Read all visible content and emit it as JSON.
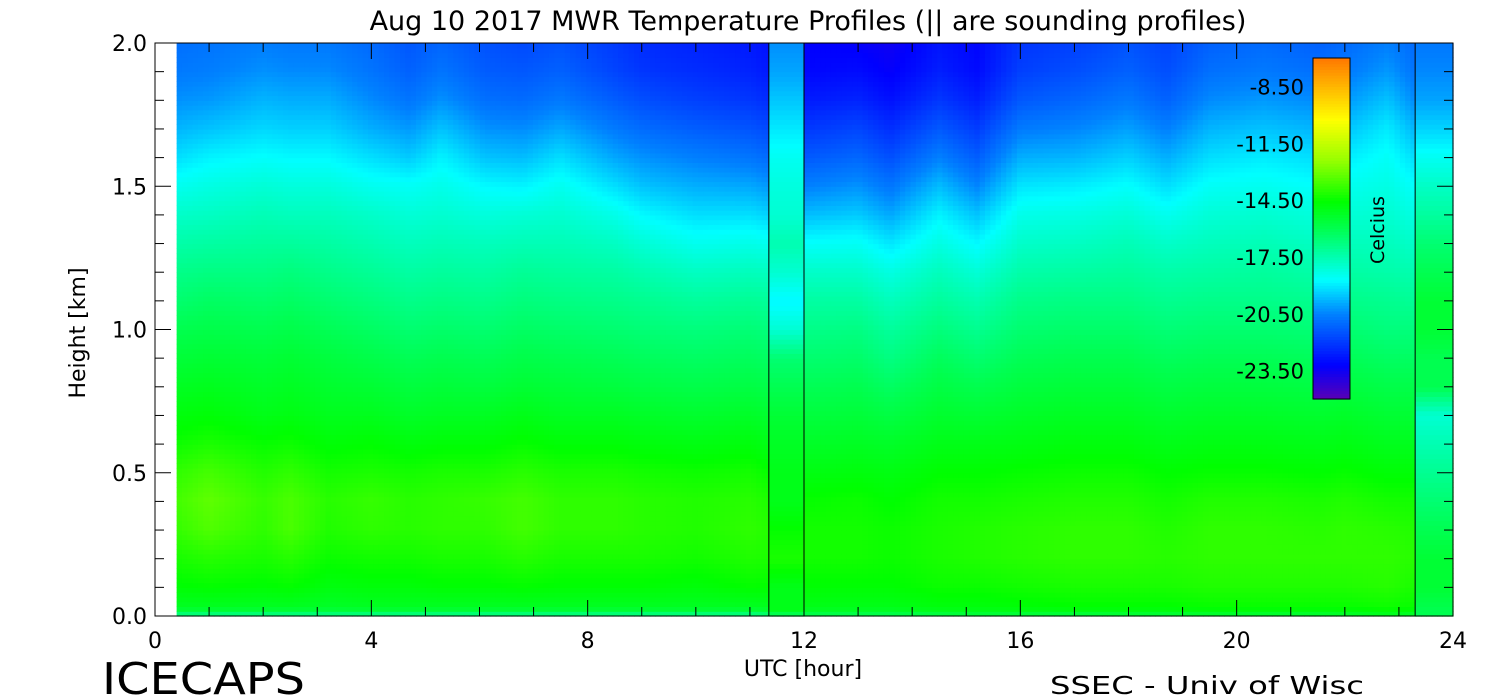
{
  "chart_data": {
    "type": "heatmap",
    "title": "Aug 10 2017 MWR Temperature Profiles (|| are sounding profiles)",
    "xlabel": "UTC [hour]",
    "ylabel": "Height [km]",
    "xlim": [
      0,
      24
    ],
    "ylim": [
      0.0,
      2.0
    ],
    "xticks": [
      "0",
      "4",
      "8",
      "12",
      "16",
      "20",
      "24"
    ],
    "yticks": [
      "0.0",
      "0.5",
      "1.0",
      "1.5",
      "2.0"
    ],
    "colorbar": {
      "label": "Celcius",
      "range": [
        -25.0,
        -7.0
      ],
      "ticks": [
        "-8.50",
        "-11.50",
        "-14.50",
        "-17.50",
        "-20.50",
        "-23.50"
      ],
      "tick_values": [
        -8.5,
        -11.5,
        -14.5,
        -17.5,
        -20.5,
        -23.5
      ]
    },
    "data_start_hour": 0.4,
    "data_end_hour": 24.0,
    "heights_km": [
      0.0,
      0.02,
      0.1,
      0.2,
      0.3,
      0.4,
      0.5,
      0.6,
      0.7,
      0.8,
      0.9,
      1.0,
      1.1,
      1.2,
      1.3,
      1.4,
      1.5,
      1.6,
      1.7,
      1.8,
      1.9,
      2.0
    ],
    "sounding_profiles": [
      {
        "start_hour": 11.35,
        "end_hour": 12.0,
        "temperature_c": [
          -16.5,
          -15.0,
          -15.0,
          -14.2,
          -14.5,
          -15.0,
          -15.0,
          -15.2,
          -15.5,
          -16.0,
          -16.5,
          -18.0,
          -18.8,
          -18.0,
          -17.5,
          -18.0,
          -18.2,
          -18.5,
          -19.0,
          -19.5,
          -20.0,
          -20.3
        ]
      },
      {
        "start_hour": 23.3,
        "end_hour": 24.0,
        "temperature_c": [
          -16.0,
          -16.0,
          -15.5,
          -15.5,
          -16.0,
          -16.5,
          -17.0,
          -17.5,
          -18.0,
          -16.0,
          -16.0,
          -15.5,
          -15.5,
          -16.0,
          -16.5,
          -17.2,
          -17.8,
          -18.5,
          -19.3,
          -20.0,
          -20.4,
          -20.7
        ]
      }
    ],
    "mwr_profiles": [
      {
        "hour": 0.4,
        "temperature_c": [
          -16.5,
          -15.2,
          -14.6,
          -14.2,
          -13.8,
          -13.6,
          -13.9,
          -14.4,
          -14.8,
          -15.2,
          -15.6,
          -16.0,
          -16.5,
          -16.9,
          -17.4,
          -17.9,
          -18.5,
          -19.2,
          -19.8,
          -20.3,
          -20.7,
          -20.9
        ]
      },
      {
        "hour": 1.0,
        "temperature_c": [
          -16.5,
          -15.2,
          -14.5,
          -14.0,
          -13.4,
          -13.2,
          -13.6,
          -14.2,
          -14.7,
          -15.1,
          -15.5,
          -15.9,
          -16.3,
          -16.8,
          -17.3,
          -17.8,
          -18.3,
          -18.9,
          -19.6,
          -20.2,
          -20.6,
          -20.8
        ]
      },
      {
        "hour": 2.0,
        "temperature_c": [
          -16.5,
          -15.2,
          -14.6,
          -14.2,
          -13.9,
          -13.8,
          -14.1,
          -14.5,
          -15.0,
          -15.3,
          -15.6,
          -16.0,
          -16.4,
          -16.8,
          -17.2,
          -17.6,
          -18.1,
          -18.7,
          -19.3,
          -19.8,
          -20.3,
          -20.6
        ]
      },
      {
        "hour": 2.5,
        "temperature_c": [
          -16.5,
          -15.2,
          -14.5,
          -14.0,
          -13.5,
          -13.5,
          -13.9,
          -14.4,
          -14.9,
          -15.2,
          -15.5,
          -15.9,
          -16.3,
          -16.7,
          -17.2,
          -17.7,
          -18.2,
          -18.8,
          -19.4,
          -19.9,
          -20.4,
          -20.7
        ]
      },
      {
        "hour": 3.2,
        "temperature_c": [
          -16.5,
          -15.3,
          -14.8,
          -14.4,
          -14.1,
          -14.0,
          -14.3,
          -14.7,
          -15.1,
          -15.4,
          -15.7,
          -16.1,
          -16.5,
          -16.9,
          -17.3,
          -17.7,
          -18.2,
          -18.8,
          -19.4,
          -19.9,
          -20.4,
          -20.7
        ]
      },
      {
        "hour": 4.0,
        "temperature_c": [
          -16.5,
          -15.2,
          -14.7,
          -14.3,
          -13.9,
          -13.8,
          -14.2,
          -14.6,
          -15.1,
          -15.5,
          -15.9,
          -16.3,
          -16.7,
          -17.1,
          -17.5,
          -17.9,
          -18.5,
          -19.2,
          -19.9,
          -20.4,
          -20.8,
          -21.0
        ]
      },
      {
        "hour": 4.7,
        "temperature_c": [
          -16.5,
          -15.2,
          -14.7,
          -14.3,
          -14.0,
          -14.0,
          -14.3,
          -14.8,
          -15.3,
          -15.7,
          -16.1,
          -16.5,
          -16.9,
          -17.3,
          -17.7,
          -18.1,
          -18.6,
          -19.5,
          -20.2,
          -20.8,
          -21.2,
          -21.4
        ]
      },
      {
        "hour": 5.3,
        "temperature_c": [
          -16.5,
          -15.2,
          -14.6,
          -14.2,
          -13.9,
          -13.9,
          -14.2,
          -14.7,
          -15.2,
          -15.6,
          -16.0,
          -16.4,
          -16.8,
          -17.2,
          -17.6,
          -18.0,
          -18.4,
          -18.9,
          -19.6,
          -20.3,
          -20.8,
          -21.1
        ]
      },
      {
        "hour": 6.1,
        "temperature_c": [
          -16.5,
          -15.2,
          -14.6,
          -14.2,
          -13.9,
          -13.8,
          -14.2,
          -14.7,
          -15.2,
          -15.7,
          -16.1,
          -16.5,
          -16.9,
          -17.3,
          -17.7,
          -18.2,
          -18.8,
          -19.6,
          -20.3,
          -20.9,
          -21.3,
          -21.5
        ]
      },
      {
        "hour": 6.8,
        "temperature_c": [
          -16.5,
          -15.2,
          -14.5,
          -14.0,
          -13.6,
          -13.6,
          -14.0,
          -14.5,
          -15.0,
          -15.5,
          -15.9,
          -16.3,
          -16.7,
          -17.1,
          -17.6,
          -18.1,
          -18.9,
          -19.7,
          -20.4,
          -21.0,
          -21.4,
          -21.7
        ]
      },
      {
        "hour": 7.5,
        "temperature_c": [
          -16.5,
          -15.2,
          -14.6,
          -14.2,
          -13.9,
          -13.9,
          -14.2,
          -14.7,
          -15.2,
          -15.6,
          -16.0,
          -16.4,
          -16.8,
          -17.2,
          -17.6,
          -18.0,
          -18.5,
          -19.2,
          -20.0,
          -20.7,
          -21.2,
          -21.5
        ]
      },
      {
        "hour": 8.5,
        "temperature_c": [
          -16.5,
          -15.2,
          -14.6,
          -14.2,
          -13.9,
          -13.9,
          -14.2,
          -14.7,
          -15.2,
          -15.7,
          -16.1,
          -16.5,
          -16.9,
          -17.3,
          -17.8,
          -18.4,
          -19.2,
          -20.0,
          -20.7,
          -21.3,
          -21.8,
          -22.0
        ]
      },
      {
        "hour": 9.0,
        "temperature_c": [
          -16.5,
          -15.2,
          -14.6,
          -14.2,
          -14.0,
          -14.0,
          -14.3,
          -14.8,
          -15.3,
          -15.8,
          -16.2,
          -16.6,
          -17.0,
          -17.5,
          -18.1,
          -18.8,
          -19.6,
          -20.3,
          -21.0,
          -21.6,
          -22.1,
          -22.3
        ]
      },
      {
        "hour": 10.0,
        "temperature_c": [
          -16.5,
          -15.2,
          -14.7,
          -14.3,
          -14.1,
          -14.1,
          -14.4,
          -14.9,
          -15.4,
          -15.9,
          -16.3,
          -16.7,
          -17.2,
          -17.8,
          -18.5,
          -19.2,
          -19.9,
          -20.6,
          -21.3,
          -21.9,
          -22.3,
          -22.5
        ]
      },
      {
        "hour": 11.0,
        "temperature_c": [
          -16.5,
          -15.2,
          -14.5,
          -14.1,
          -13.9,
          -14.0,
          -14.3,
          -14.8,
          -15.3,
          -15.8,
          -16.2,
          -16.6,
          -17.1,
          -17.7,
          -18.4,
          -19.2,
          -20.0,
          -20.8,
          -21.5,
          -22.1,
          -22.5,
          -22.7
        ]
      },
      {
        "hour": 12.0,
        "temperature_c": [
          -15.8,
          -15.0,
          -14.6,
          -14.3,
          -14.3,
          -14.5,
          -14.9,
          -15.3,
          -15.7,
          -16.1,
          -16.5,
          -16.9,
          -17.3,
          -17.9,
          -18.7,
          -19.7,
          -20.6,
          -21.4,
          -22.1,
          -22.7,
          -23.1,
          -23.2
        ]
      },
      {
        "hour": 13.0,
        "temperature_c": [
          -15.8,
          -15.0,
          -14.6,
          -14.3,
          -14.3,
          -14.4,
          -14.8,
          -15.2,
          -15.6,
          -16.0,
          -16.4,
          -16.8,
          -17.3,
          -17.9,
          -18.6,
          -19.5,
          -20.3,
          -21.1,
          -21.8,
          -22.5,
          -23.0,
          -23.3
        ]
      },
      {
        "hour": 13.6,
        "temperature_c": [
          -15.8,
          -15.0,
          -14.6,
          -14.4,
          -14.4,
          -14.6,
          -14.9,
          -15.3,
          -15.8,
          -16.3,
          -16.8,
          -17.2,
          -17.7,
          -18.3,
          -19.1,
          -20.0,
          -20.8,
          -21.6,
          -22.3,
          -22.9,
          -23.3,
          -23.5
        ]
      },
      {
        "hour": 14.5,
        "temperature_c": [
          -15.6,
          -14.8,
          -14.4,
          -14.2,
          -14.2,
          -14.3,
          -14.6,
          -15.0,
          -15.4,
          -15.8,
          -16.2,
          -16.7,
          -17.2,
          -17.7,
          -18.3,
          -18.9,
          -19.7,
          -20.6,
          -21.4,
          -22.1,
          -22.6,
          -22.8
        ]
      },
      {
        "hour": 15.2,
        "temperature_c": [
          -15.5,
          -14.8,
          -14.4,
          -14.1,
          -14.1,
          -14.3,
          -14.6,
          -15.0,
          -15.5,
          -16.0,
          -16.5,
          -17.0,
          -17.5,
          -18.1,
          -18.8,
          -19.6,
          -20.5,
          -21.3,
          -22.0,
          -22.6,
          -23.0,
          -23.1
        ]
      },
      {
        "hour": 16.0,
        "temperature_c": [
          -15.5,
          -14.7,
          -14.3,
          -14.0,
          -14.0,
          -14.2,
          -14.5,
          -14.9,
          -15.3,
          -15.7,
          -16.1,
          -16.5,
          -16.9,
          -17.4,
          -17.9,
          -18.4,
          -19.1,
          -19.9,
          -20.7,
          -21.4,
          -21.9,
          -22.1
        ]
      },
      {
        "hour": 17.0,
        "temperature_c": [
          -15.5,
          -14.6,
          -14.2,
          -13.9,
          -13.9,
          -14.1,
          -14.4,
          -14.8,
          -15.2,
          -15.6,
          -16.0,
          -16.4,
          -16.8,
          -17.3,
          -17.8,
          -18.3,
          -19.0,
          -19.8,
          -20.5,
          -21.1,
          -21.6,
          -21.9
        ]
      },
      {
        "hour": 18.0,
        "temperature_c": [
          -15.4,
          -14.6,
          -14.2,
          -13.9,
          -13.9,
          -14.1,
          -14.4,
          -14.8,
          -15.2,
          -15.6,
          -16.0,
          -16.4,
          -16.8,
          -17.2,
          -17.6,
          -18.1,
          -18.7,
          -19.4,
          -20.1,
          -20.7,
          -21.2,
          -21.5
        ]
      },
      {
        "hour": 18.7,
        "temperature_c": [
          -15.4,
          -14.6,
          -14.2,
          -14.0,
          -14.1,
          -14.3,
          -14.6,
          -15.0,
          -15.4,
          -15.8,
          -16.2,
          -16.6,
          -17.0,
          -17.4,
          -17.9,
          -18.5,
          -19.2,
          -19.9,
          -20.6,
          -21.2,
          -21.6,
          -21.8
        ]
      },
      {
        "hour": 19.5,
        "temperature_c": [
          -15.3,
          -14.5,
          -14.1,
          -13.9,
          -13.9,
          -14.1,
          -14.5,
          -14.9,
          -15.3,
          -15.7,
          -16.1,
          -16.5,
          -16.9,
          -17.3,
          -17.7,
          -18.1,
          -18.6,
          -19.2,
          -19.8,
          -20.4,
          -20.9,
          -21.2
        ]
      },
      {
        "hour": 20.5,
        "temperature_c": [
          -15.3,
          -14.5,
          -14.1,
          -13.9,
          -13.9,
          -14.1,
          -14.5,
          -14.9,
          -15.3,
          -15.7,
          -16.1,
          -16.5,
          -16.9,
          -17.2,
          -17.6,
          -18.0,
          -18.5,
          -19.0,
          -19.6,
          -20.2,
          -20.7,
          -21.0
        ]
      },
      {
        "hour": 21.5,
        "temperature_c": [
          -15.3,
          -14.5,
          -14.1,
          -13.9,
          -14.0,
          -14.2,
          -14.6,
          -15.0,
          -15.4,
          -15.8,
          -16.2,
          -16.6,
          -17.0,
          -17.4,
          -17.8,
          -18.2,
          -18.7,
          -19.2,
          -19.8,
          -20.4,
          -20.9,
          -21.2
        ]
      },
      {
        "hour": 22.0,
        "temperature_c": [
          -15.2,
          -14.5,
          -14.1,
          -13.9,
          -13.9,
          -14.1,
          -14.5,
          -14.9,
          -15.3,
          -15.7,
          -16.1,
          -16.5,
          -16.9,
          -17.3,
          -17.7,
          -18.1,
          -18.5,
          -19.0,
          -19.6,
          -20.2,
          -20.7,
          -21.0
        ]
      },
      {
        "hour": 22.8,
        "temperature_c": [
          -15.0,
          -14.4,
          -14.0,
          -13.9,
          -14.0,
          -14.3,
          -14.7,
          -15.1,
          -15.5,
          -15.9,
          -16.3,
          -16.7,
          -17.0,
          -17.4,
          -17.7,
          -18.0,
          -18.3,
          -18.6,
          -19.0,
          -19.6,
          -20.2,
          -20.6
        ]
      },
      {
        "hour": 23.3,
        "temperature_c": [
          -15.2,
          -14.5,
          -14.2,
          -14.0,
          -14.1,
          -14.3,
          -14.7,
          -15.1,
          -15.5,
          -15.9,
          -16.3,
          -16.7,
          -17.1,
          -17.5,
          -17.9,
          -18.3,
          -18.7,
          -19.2,
          -19.8,
          -20.4,
          -20.8,
          -21.0
        ]
      }
    ]
  },
  "footer": {
    "left_label": "ICECAPS",
    "right_label": "SSEC - Univ of Wisc"
  }
}
